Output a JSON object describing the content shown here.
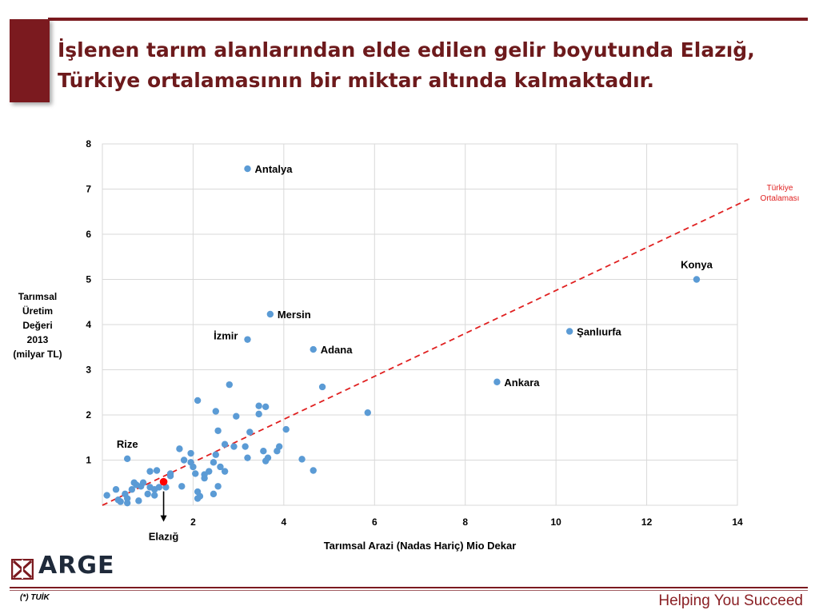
{
  "slide": {
    "title_lines": [
      "İşlenen tarım alanlarından elde edilen gelir boyutunda Elazığ,",
      "Türkiye ortalamasının bir miktar altında kalmaktadır."
    ],
    "source_note": "(*) TUİK",
    "tagline": "Helping You Succeed",
    "logo_text": "ARGE",
    "colors": {
      "brand": "#7b1a1f",
      "point": "#5b9bd5",
      "highlight": "#ff0000",
      "trend": "#e02020"
    }
  },
  "chart_data": {
    "type": "scatter",
    "xlabel": "Tarımsal Arazi (Nadas Hariç) Mio Dekar",
    "ylabel_lines": [
      "Tarımsal",
      "Üretim",
      "Değeri",
      "2013",
      "(milyar TL)"
    ],
    "xlim": [
      0,
      14
    ],
    "ylim": [
      0,
      8
    ],
    "x_ticks": [
      2,
      4,
      6,
      8,
      10,
      12,
      14
    ],
    "y_ticks": [
      1,
      2,
      3,
      4,
      5,
      6,
      7,
      8
    ],
    "grid": true,
    "labeled_points": [
      {
        "label": "Antalya",
        "x": 3.2,
        "y": 7.45,
        "pos": "right"
      },
      {
        "label": "Konya",
        "x": 13.1,
        "y": 5.0,
        "pos": "above"
      },
      {
        "label": "Mersin",
        "x": 3.7,
        "y": 4.23,
        "pos": "right"
      },
      {
        "label": "İzmir",
        "x": 3.2,
        "y": 3.67,
        "pos": "left"
      },
      {
        "label": "Adana",
        "x": 4.65,
        "y": 3.45,
        "pos": "right"
      },
      {
        "label": "Şanlıurfa",
        "x": 10.3,
        "y": 3.85,
        "pos": "right"
      },
      {
        "label": "Ankara",
        "x": 8.7,
        "y": 2.73,
        "pos": "right"
      },
      {
        "label": "Rize",
        "x": 0.55,
        "y": 1.03,
        "pos": "above"
      }
    ],
    "highlight_point": {
      "label": "Elazığ",
      "x": 1.35,
      "y": 0.52
    },
    "points": [
      [
        0.1,
        0.22
      ],
      [
        0.3,
        0.35
      ],
      [
        0.35,
        0.12
      ],
      [
        0.4,
        0.08
      ],
      [
        0.55,
        0.05
      ],
      [
        0.5,
        0.25
      ],
      [
        0.55,
        0.15
      ],
      [
        0.65,
        0.35
      ],
      [
        0.75,
        0.45
      ],
      [
        0.8,
        0.1
      ],
      [
        0.85,
        0.42
      ],
      [
        0.9,
        0.5
      ],
      [
        0.7,
        0.5
      ],
      [
        1.0,
        0.25
      ],
      [
        1.05,
        0.4
      ],
      [
        1.05,
        0.75
      ],
      [
        1.15,
        0.22
      ],
      [
        1.15,
        0.35
      ],
      [
        1.2,
        0.77
      ],
      [
        1.25,
        0.4
      ],
      [
        1.4,
        0.4
      ],
      [
        1.5,
        0.65
      ],
      [
        1.5,
        0.7
      ],
      [
        1.7,
        1.25
      ],
      [
        1.75,
        0.42
      ],
      [
        1.8,
        1.0
      ],
      [
        1.95,
        1.15
      ],
      [
        1.95,
        0.95
      ],
      [
        2.0,
        0.85
      ],
      [
        2.05,
        0.7
      ],
      [
        2.1,
        0.15
      ],
      [
        2.1,
        0.3
      ],
      [
        2.1,
        2.32
      ],
      [
        2.15,
        0.2
      ],
      [
        2.25,
        0.68
      ],
      [
        2.25,
        0.6
      ],
      [
        2.35,
        0.75
      ],
      [
        2.45,
        0.25
      ],
      [
        2.45,
        0.95
      ],
      [
        2.5,
        1.12
      ],
      [
        2.5,
        2.08
      ],
      [
        2.55,
        1.65
      ],
      [
        2.55,
        0.42
      ],
      [
        2.6,
        0.85
      ],
      [
        2.7,
        0.75
      ],
      [
        2.7,
        1.35
      ],
      [
        2.8,
        2.67
      ],
      [
        2.9,
        1.3
      ],
      [
        2.95,
        1.97
      ],
      [
        3.15,
        1.3
      ],
      [
        3.2,
        1.05
      ],
      [
        3.25,
        1.62
      ],
      [
        3.45,
        2.2
      ],
      [
        3.45,
        2.02
      ],
      [
        3.55,
        1.2
      ],
      [
        3.6,
        0.98
      ],
      [
        3.6,
        2.18
      ],
      [
        3.65,
        1.05
      ],
      [
        3.85,
        1.2
      ],
      [
        3.9,
        1.3
      ],
      [
        4.05,
        1.68
      ],
      [
        4.4,
        1.02
      ],
      [
        4.65,
        0.77
      ],
      [
        4.85,
        2.62
      ],
      [
        5.85,
        2.05
      ]
    ],
    "trend_label_lines": [
      "Türkiye",
      "Ortalaması"
    ],
    "trend_line": {
      "from": [
        0,
        0
      ],
      "to": [
        14.3,
        6.8
      ]
    },
    "callout_label": "Elazığ"
  }
}
